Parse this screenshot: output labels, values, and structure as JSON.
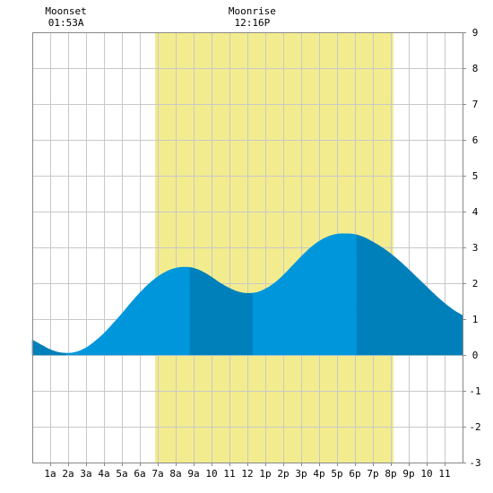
{
  "chart_data": {
    "type": "area",
    "title": "",
    "xlabel": "",
    "ylabel": "",
    "xlim": [
      0,
      24
    ],
    "ylim": [
      -3,
      9
    ],
    "yticks": [
      -3,
      -2,
      -1,
      0,
      1,
      2,
      3,
      4,
      5,
      6,
      7,
      8,
      9
    ],
    "xtick_labels": [
      {
        "hour": 1,
        "label": "1a"
      },
      {
        "hour": 2,
        "label": "2a"
      },
      {
        "hour": 3,
        "label": "3a"
      },
      {
        "hour": 4,
        "label": "4a"
      },
      {
        "hour": 5,
        "label": "5a"
      },
      {
        "hour": 6,
        "label": "6a"
      },
      {
        "hour": 7,
        "label": "7a"
      },
      {
        "hour": 8,
        "label": "8a"
      },
      {
        "hour": 9,
        "label": "9a"
      },
      {
        "hour": 10,
        "label": "10"
      },
      {
        "hour": 11,
        "label": "11"
      },
      {
        "hour": 12,
        "label": "12"
      },
      {
        "hour": 13,
        "label": "1p"
      },
      {
        "hour": 14,
        "label": "2p"
      },
      {
        "hour": 15,
        "label": "3p"
      },
      {
        "hour": 16,
        "label": "4p"
      },
      {
        "hour": 17,
        "label": "5p"
      },
      {
        "hour": 18,
        "label": "6p"
      },
      {
        "hour": 19,
        "label": "7p"
      },
      {
        "hour": 20,
        "label": "8p"
      },
      {
        "hour": 21,
        "label": "9p"
      },
      {
        "hour": 22,
        "label": "10"
      },
      {
        "hour": 23,
        "label": "11"
      }
    ],
    "grid": true,
    "daylight": {
      "start": 6.85,
      "end": 20.15,
      "color": "#f2ec8f"
    },
    "moon_events": [
      {
        "name": "Moonset",
        "time": "01:53A",
        "hour": 1.88
      },
      {
        "name": "Moonrise",
        "time": "12:16P",
        "hour": 12.27
      }
    ],
    "tide_extremes": [
      {
        "hour": 1.9,
        "value": 0.05,
        "kind": "low"
      },
      {
        "hour": 8.8,
        "value": 2.45,
        "kind": "high"
      },
      {
        "hour": 12.3,
        "value": 1.72,
        "kind": "low"
      },
      {
        "hour": 18.1,
        "value": 3.38,
        "kind": "high"
      }
    ],
    "series": [
      {
        "x": [
          0,
          0.5,
          1,
          1.5,
          2,
          2.5,
          3,
          3.5,
          4,
          4.5,
          5,
          5.5,
          6,
          6.5,
          7,
          7.5,
          8,
          8.5,
          9,
          9.5,
          10,
          10.5,
          11,
          11.5,
          12,
          12.5,
          13,
          13.5,
          14,
          14.5,
          15,
          15.5,
          16,
          16.5,
          17,
          17.5,
          18,
          18.5,
          19,
          19.5,
          20,
          20.5,
          21,
          21.5,
          22,
          22.5,
          23,
          23.5,
          24
        ],
        "values": [
          0.42,
          0.28,
          0.15,
          0.07,
          0.05,
          0.09,
          0.2,
          0.38,
          0.6,
          0.87,
          1.15,
          1.45,
          1.73,
          1.98,
          2.18,
          2.33,
          2.42,
          2.45,
          2.42,
          2.32,
          2.17,
          2.0,
          1.86,
          1.76,
          1.72,
          1.74,
          1.84,
          2.0,
          2.22,
          2.48,
          2.74,
          2.98,
          3.17,
          3.3,
          3.37,
          3.38,
          3.36,
          3.28,
          3.15,
          3.0,
          2.82,
          2.61,
          2.38,
          2.14,
          1.9,
          1.66,
          1.44,
          1.25,
          1.1
        ]
      }
    ],
    "colors": {
      "background": "#ffffff",
      "grid": "#c8c8c8",
      "axis": "#888888",
      "tide_light": "#0096dc",
      "tide_dark": "#0080bb",
      "daylight": "#f2ec8f"
    }
  }
}
